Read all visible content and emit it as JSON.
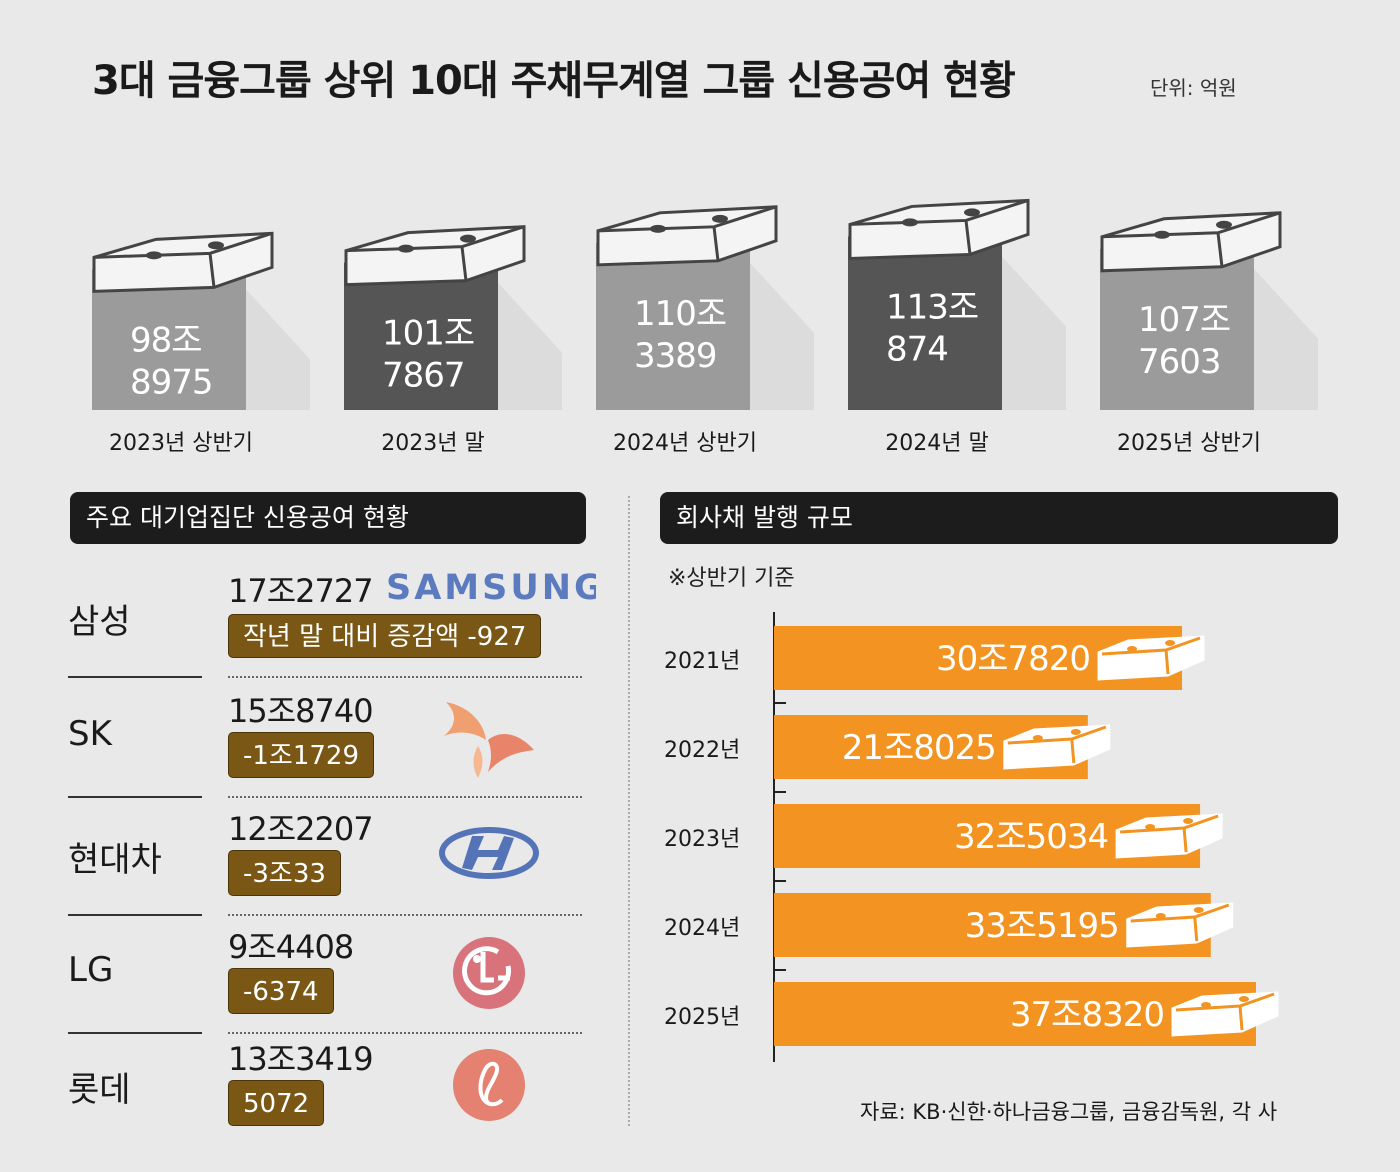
{
  "title": "3대 금융그룹 상위 10대 주채무계열 그룹 신용공여 현황",
  "unit": "단위: 억원",
  "chart_data": [
    {
      "type": "bar",
      "title": "3대 금융그룹 상위 10대 주채무계열 그룹 신용공여 현황",
      "unit": "단위: 억원",
      "categories": [
        "2023년 상반기",
        "2023년 말",
        "2024년 상반기",
        "2024년 말",
        "2025년 상반기"
      ],
      "values": [
        988975,
        1017867,
        1103389,
        1130874,
        1077603
      ],
      "labels": [
        [
          "98조",
          "8975"
        ],
        [
          "101조",
          "7867"
        ],
        [
          "110조",
          "3389"
        ],
        [
          "113조",
          "874"
        ],
        [
          "107조",
          "7603"
        ]
      ],
      "colors": [
        "#9b9b9b",
        "#555555",
        "#9b9b9b",
        "#555555",
        "#9b9b9b"
      ]
    },
    {
      "type": "bar",
      "orientation": "horizontal",
      "title": "회사채 발행 규모",
      "note": "※상반기 기준",
      "categories": [
        "2021년",
        "2022년",
        "2023년",
        "2024년",
        "2025년"
      ],
      "values": [
        307820,
        218025,
        325034,
        335195,
        378320
      ],
      "labels": [
        "30조7820",
        "21조8025",
        "32조5034",
        "33조5195",
        "37조8320"
      ],
      "color": "#f39321"
    }
  ],
  "groups": {
    "header": "주요 대기업집단 신용공여 현황",
    "items": [
      {
        "name": "삼성",
        "value": "17조2727",
        "change": "작년 말 대비 증감액  -927",
        "logo": "samsung-logo",
        "logo_text": "SAMSUNG"
      },
      {
        "name": "SK",
        "value": "15조8740",
        "change": "-1조1729",
        "logo": "sk-logo"
      },
      {
        "name": "현대차",
        "value": "12조2207",
        "change": "-3조33",
        "logo": "hyundai-logo"
      },
      {
        "name": "LG",
        "value": "9조4408",
        "change": "-6374",
        "logo": "lg-logo"
      },
      {
        "name": "롯데",
        "value": "13조3419",
        "change": "5072",
        "logo": "lotte-logo"
      }
    ]
  },
  "bonds": {
    "header": "회사채 발행 규모",
    "note": "※상반기 기준"
  },
  "source": "자료: KB·신한·하나금융그룹, 금융감독원, 각 사",
  "colors": {
    "accent": "#f39321",
    "badge": "#7a5714",
    "dark_bar": "#555555",
    "light_bar": "#9b9b9b"
  }
}
